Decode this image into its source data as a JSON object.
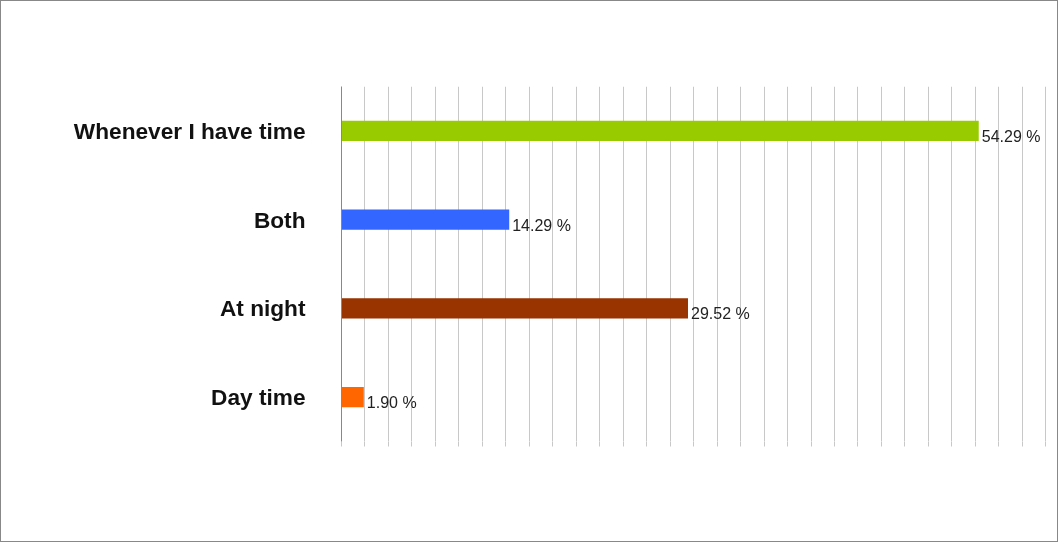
{
  "chart_data": {
    "type": "bar",
    "orientation": "horizontal",
    "categories": [
      "Whenever I have time",
      "Both",
      "At night",
      "Day time"
    ],
    "values": [
      54.29,
      14.29,
      29.52,
      1.9
    ],
    "colors": [
      "#99cc00",
      "#3366ff",
      "#993300",
      "#ff6600"
    ],
    "value_labels": [
      "54.29  %",
      "14.29  %",
      "29.52  %",
      "1.90  %"
    ],
    "xlim": [
      0,
      61
    ],
    "xticks": [
      {
        "value": 0,
        "label": null
      },
      {
        "value": 2,
        "label": null
      },
      {
        "value": 4,
        "label": null
      },
      {
        "value": 6,
        "label": null
      },
      {
        "value": 8,
        "label": null
      },
      {
        "value": 10,
        "label": null
      },
      {
        "value": 12,
        "label": null
      },
      {
        "value": 14,
        "label": null
      },
      {
        "value": 16,
        "label": null
      },
      {
        "value": 18,
        "label": null
      },
      {
        "value": 20,
        "label": null
      },
      {
        "value": 22,
        "label": null
      },
      {
        "value": 24,
        "label": null
      },
      {
        "value": 26,
        "label": null
      },
      {
        "value": 28,
        "label": null
      },
      {
        "value": 30,
        "label": null
      },
      {
        "value": 32,
        "label": null
      },
      {
        "value": 34,
        "label": null
      },
      {
        "value": 36,
        "label": null
      },
      {
        "value": 38,
        "label": null
      },
      {
        "value": 40,
        "label": null
      },
      {
        "value": 42,
        "label": null
      },
      {
        "value": 44,
        "label": null
      },
      {
        "value": 46,
        "label": null
      },
      {
        "value": 48,
        "label": null
      },
      {
        "value": 50,
        "label": null
      },
      {
        "value": 52,
        "label": null
      },
      {
        "value": 54,
        "label": null
      },
      {
        "value": 56,
        "label": null
      },
      {
        "value": 58,
        "label": null
      },
      {
        "value": 60,
        "label": null
      }
    ],
    "grid": "x",
    "tick_labels": "y"
  }
}
